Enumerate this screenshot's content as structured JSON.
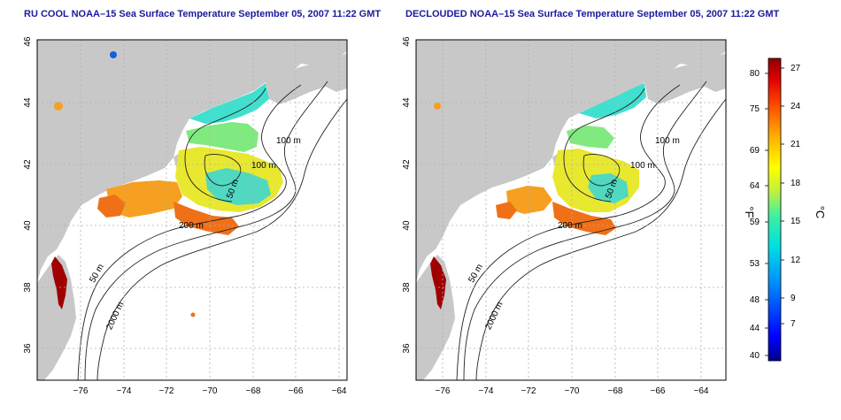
{
  "titles": {
    "left": "RU COOL NOAA–15 Sea Surface Temperature September 05, 2007 11:22 GMT",
    "right": "DECLOUDED NOAA–15 Sea Surface Temperature September 05, 2007 11:22 GMT"
  },
  "axes": {
    "x_ticks": [
      "−76",
      "−74",
      "−72",
      "−70",
      "−68",
      "−66",
      "−64"
    ],
    "y_ticks": [
      "46",
      "44",
      "42",
      "40",
      "38",
      "36"
    ]
  },
  "contour_labels": {
    "left": [
      "100 m",
      "100 m",
      "50 m",
      "200 m",
      "50 m",
      "2000 m"
    ],
    "right": [
      "100 m",
      "100 m",
      "50 m",
      "200 m",
      "50 m",
      "2000 m"
    ]
  },
  "colorbar": {
    "fahrenheit_unit": "°F",
    "celsius_unit": "°C",
    "fahrenheit_ticks": [
      "80",
      "75",
      "69",
      "64",
      "59",
      "53",
      "48",
      "44",
      "40"
    ],
    "celsius_ticks": [
      "27",
      "24",
      "21",
      "18",
      "15",
      "12",
      "9",
      "7"
    ]
  },
  "colors": {
    "land": "#c8c8c8",
    "ocean": "#ffffff",
    "title": "#1a1aa0"
  }
}
